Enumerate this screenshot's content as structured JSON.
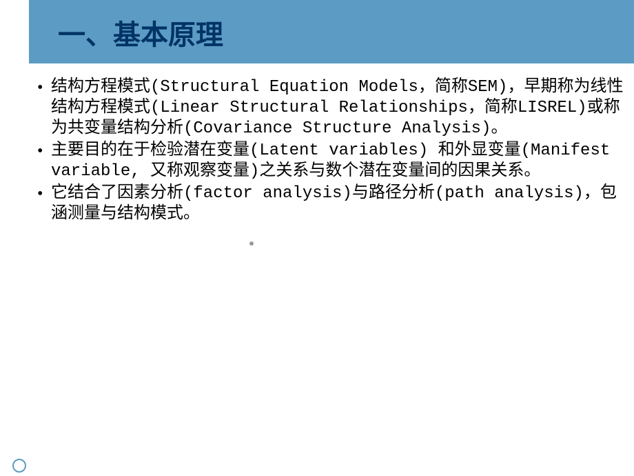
{
  "slide": {
    "title": "一、基本原理",
    "header_bg_color": "#5c9bc3",
    "title_color": "#003366",
    "background_color": "#ffffff",
    "text_color": "#000000",
    "font_size_title": 40,
    "font_size_body": 24,
    "bullets": [
      {
        "marker": "•",
        "text": "结构方程模式(Structural Equation Models，简称SEM)，早期称为线性结构方程模式(Linear Structural Relationships，简称LISREL)或称为共变量结构分析(Covariance Structure Analysis)。"
      },
      {
        "marker": "•",
        "text": "主要目的在于检验潜在变量(Latent variables) 和外显变量(Manifest variable, 又称观察变量)之关系与数个潜在变量间的因果关系。"
      },
      {
        "marker": "•",
        "text": "它结合了因素分析(factor analysis)与路径分析(path analysis)，包涵测量与结构模式。"
      }
    ]
  }
}
